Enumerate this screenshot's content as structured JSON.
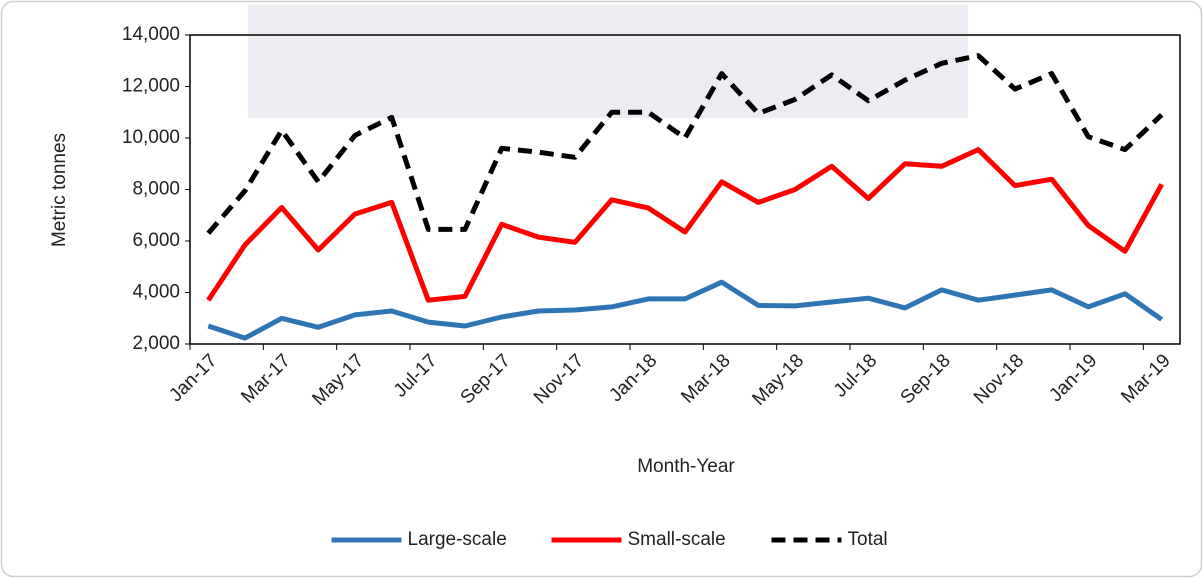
{
  "chart_data": {
    "type": "line",
    "x_label": "Month-Year",
    "y_label": "Metric tonnes",
    "categories": [
      "Jan-17",
      null,
      "Mar-17",
      null,
      "May-17",
      null,
      "Jul-17",
      null,
      "Sep-17",
      null,
      "Nov-17",
      null,
      "Jan-18",
      null,
      "Mar-18",
      null,
      "May-18",
      null,
      "Jul-18",
      null,
      "Sep-18",
      null,
      "Nov-18",
      null,
      "Jan-19",
      null,
      "Mar-19"
    ],
    "series": [
      {
        "name": "Large-scale",
        "color": "#2e75b6",
        "dashed": false,
        "values": [
          2700,
          2230,
          3000,
          2650,
          3130,
          3280,
          2850,
          2700,
          3050,
          3280,
          3320,
          3440,
          3750,
          3750,
          4400,
          3500,
          3480,
          3630,
          3780,
          3400,
          4100,
          3700,
          3900,
          4100,
          3440,
          3950,
          2950
        ]
      },
      {
        "name": "Small-scale",
        "color": "#ff0000",
        "dashed": false,
        "values": [
          3700,
          5850,
          7300,
          5650,
          7050,
          7500,
          3700,
          3850,
          6650,
          6150,
          5950,
          7600,
          7280,
          6350,
          8300,
          7500,
          8000,
          8900,
          7650,
          9000,
          8900,
          9550,
          8150,
          8400,
          6600,
          5600,
          8200
        ]
      },
      {
        "name": "Total",
        "color": "#000000",
        "dashed": true,
        "values": [
          6300,
          7950,
          10300,
          8300,
          10100,
          10800,
          6450,
          6450,
          9600,
          9450,
          9250,
          11000,
          11000,
          10000,
          12500,
          10950,
          11500,
          12450,
          11450,
          12250,
          12900,
          13200,
          11900,
          12500,
          10050,
          9550,
          10900
        ]
      }
    ],
    "ylim": [
      2000,
      14000
    ],
    "yticks": [
      {
        "value": 2000,
        "label": "2,000"
      },
      {
        "value": 4000,
        "label": "4,000"
      },
      {
        "value": 6000,
        "label": "6,000"
      },
      {
        "value": 8000,
        "label": "8,000"
      },
      {
        "value": 10000,
        "label": "10,000"
      },
      {
        "value": 12000,
        "label": "12,000"
      },
      {
        "value": 14000,
        "label": "14,000"
      }
    ],
    "legend": "bottom"
  }
}
